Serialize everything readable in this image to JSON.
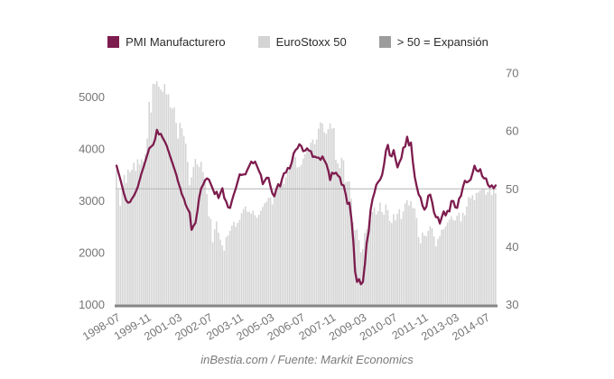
{
  "legend": {
    "items": [
      {
        "label": "PMI Manufacturero",
        "color": "#7d1c4e"
      },
      {
        "label": "EuroStoxx 50",
        "color": "#d4d4d4"
      },
      {
        "label": "> 50 = Expansión",
        "color": "#9c9c9c"
      }
    ]
  },
  "caption": "inBestia.com / Fuente: Markit Economics",
  "chart_data": {
    "type": "line+bar dual-axis, monthly data",
    "title": "",
    "start_month": "1998-07",
    "end_month": "2014-12",
    "grid": "off",
    "legend_position": "top",
    "left_axis": {
      "label": "",
      "series": "EuroStoxx 50",
      "ticks": [
        1000,
        2000,
        3000,
        4000,
        5000
      ],
      "range": [
        1000,
        5460
      ]
    },
    "right_axis": {
      "label": "",
      "series": "PMI Manufacturero",
      "ticks": [
        30,
        40,
        50,
        60,
        70
      ],
      "range": [
        30,
        70
      ]
    },
    "reference_line": {
      "axis": "right",
      "value": 50,
      "meaning": "> 50 = Expansión",
      "color": "#b3b3b3"
    },
    "x_ticks": [
      {
        "label": "1998-07",
        "month_index": 0
      },
      {
        "label": "1999-11",
        "month_index": 16
      },
      {
        "label": "2001-03",
        "month_index": 32
      },
      {
        "label": "2002-07",
        "month_index": 48
      },
      {
        "label": "2003-11",
        "month_index": 64
      },
      {
        "label": "2005-03",
        "month_index": 80
      },
      {
        "label": "2006-07",
        "month_index": 96
      },
      {
        "label": "2007-11",
        "month_index": 112
      },
      {
        "label": "2009-03",
        "month_index": 128
      },
      {
        "label": "2010-07",
        "month_index": 144
      },
      {
        "label": "2011-11",
        "month_index": 160
      },
      {
        "label": "2013-03",
        "month_index": 176
      },
      {
        "label": "2014-07",
        "month_index": 192
      }
    ],
    "series": [
      {
        "name": "PMI Manufacturero",
        "type": "line",
        "axis": "right",
        "color": "#7d1c4e",
        "values": [
          54.0,
          52.8,
          51.6,
          50.3,
          49.0,
          48.0,
          47.6,
          47.7,
          48.3,
          48.8,
          49.5,
          50.3,
          51.5,
          52.7,
          53.7,
          54.8,
          55.9,
          57.0,
          57.3,
          57.6,
          58.5,
          60.2,
          59.4,
          59.5,
          58.8,
          58.2,
          57.5,
          56.5,
          55.5,
          54.5,
          53.5,
          52.5,
          51.2,
          50.2,
          49.0,
          48.3,
          47.2,
          46.5,
          45.9,
          42.9,
          43.6,
          44.1,
          46.1,
          48.6,
          50.1,
          50.7,
          51.5,
          51.8,
          51.6,
          50.8,
          50.0,
          49.1,
          49.5,
          48.4,
          49.3,
          50.1,
          48.4,
          47.8,
          46.8,
          46.7,
          48.0,
          49.1,
          50.1,
          51.3,
          52.5,
          52.4,
          52.5,
          52.5,
          53.3,
          54.0,
          54.7,
          54.4,
          54.7,
          53.9,
          53.1,
          52.4,
          50.8,
          51.4,
          51.9,
          51.9,
          50.4,
          49.2,
          48.7,
          49.9,
          50.8,
          50.4,
          51.7,
          52.7,
          52.8,
          53.6,
          53.5,
          54.5,
          56.1,
          56.7,
          57.0,
          57.7,
          57.4,
          56.5,
          56.6,
          57.0,
          56.6,
          56.5,
          55.5,
          55.6,
          55.4,
          55.4,
          55.0,
          55.6,
          54.9,
          54.3,
          53.2,
          51.5,
          52.8,
          52.6,
          52.8,
          52.3,
          52.0,
          50.7,
          50.6,
          49.2,
          47.4,
          47.6,
          45.0,
          41.1,
          35.6,
          33.9,
          34.4,
          33.5,
          33.9,
          36.8,
          40.7,
          42.6,
          46.3,
          48.2,
          49.3,
          50.7,
          51.2,
          51.6,
          52.4,
          54.2,
          56.6,
          57.6,
          55.8,
          55.6,
          56.7,
          55.1,
          53.7,
          54.6,
          55.3,
          57.1,
          57.3,
          59.0,
          57.5,
          58.0,
          54.6,
          52.0,
          50.4,
          49.0,
          48.5,
          47.1,
          46.4,
          46.9,
          48.8,
          49.0,
          47.7,
          45.9,
          45.1,
          45.1,
          44.0,
          45.1,
          46.1,
          45.4,
          46.2,
          46.1,
          47.9,
          47.9,
          46.8,
          46.7,
          48.3,
          48.8,
          50.3,
          51.4,
          51.1,
          51.3,
          51.6,
          52.7,
          54.0,
          53.2,
          53.0,
          53.4,
          52.2,
          51.8,
          51.8,
          50.7,
          50.3,
          50.6,
          50.1,
          50.6
        ]
      },
      {
        "name": "EuroStoxx 50",
        "type": "bar",
        "axis": "left",
        "color": "#d4d4d4",
        "values": [
          3590,
          3210,
          2900,
          3300,
          3500,
          3342,
          3600,
          3550,
          3600,
          3730,
          3575,
          3800,
          3700,
          3800,
          3750,
          3900,
          4200,
          4904,
          4700,
          5250,
          5250,
          5300,
          5200,
          5145,
          5100,
          5250,
          5050,
          5050,
          4800,
          4772,
          4800,
          4500,
          4200,
          4500,
          4400,
          4250,
          4100,
          3750,
          3300,
          3450,
          3650,
          3806,
          3700,
          3650,
          3750,
          3550,
          3400,
          3130,
          2700,
          2650,
          2200,
          2450,
          2600,
          2386,
          2250,
          2140,
          2036,
          2300,
          2330,
          2420,
          2520,
          2600,
          2500,
          2575,
          2630,
          2761,
          2840,
          2890,
          2790,
          2790,
          2750,
          2810,
          2720,
          2670,
          2730,
          2810,
          2880,
          2951,
          2980,
          3060,
          3060,
          2930,
          3080,
          3180,
          3330,
          3260,
          3430,
          3320,
          3450,
          3578,
          3690,
          3770,
          3850,
          3840,
          3640,
          3650,
          3690,
          3810,
          3900,
          4000,
          3990,
          4120,
          4180,
          4090,
          4180,
          4390,
          4510,
          4490,
          4320,
          4290,
          4380,
          4490,
          4390,
          4400,
          3790,
          3720,
          3630,
          3830,
          3780,
          3350,
          3370,
          3370,
          3040,
          2590,
          2430,
          2448,
          2240,
          2010,
          2071,
          2380,
          2450,
          2400,
          2640,
          2780,
          2870,
          2740,
          2800,
          2966,
          2780,
          2730,
          2930,
          2820,
          2610,
          2570,
          2740,
          2620,
          2750,
          2840,
          2650,
          2793,
          2950,
          3010,
          2910,
          2990,
          2860,
          2850,
          2670,
          2300,
          2180,
          2390,
          2330,
          2317,
          2420,
          2510,
          2470,
          2310,
          2120,
          2260,
          2320,
          2440,
          2450,
          2500,
          2580,
          2636,
          2700,
          2630,
          2620,
          2710,
          2770,
          2600,
          2770,
          2720,
          2890,
          3070,
          3050,
          3109,
          3010,
          3150,
          3160,
          3200,
          3240,
          3230,
          3120,
          3170,
          3230,
          3110,
          3250,
          3146
        ]
      }
    ]
  }
}
